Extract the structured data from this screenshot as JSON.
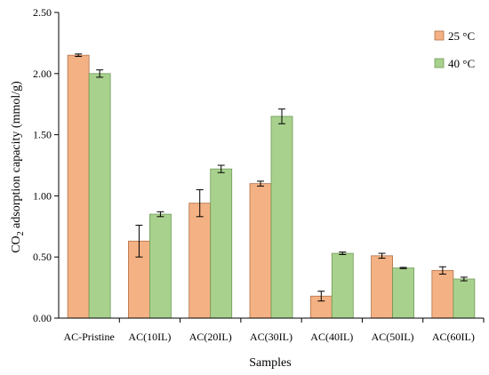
{
  "chart_data": {
    "type": "bar",
    "title": "",
    "xlabel": "Samples",
    "ylabel": {
      "prefix": "CO",
      "subscript": "2",
      "suffix": " adsorption capacity (mmol/g)"
    },
    "ylim": [
      0,
      2.5
    ],
    "yticks": [
      "0.00",
      "0.50",
      "1.00",
      "1.50",
      "2.00",
      "2.50"
    ],
    "grid": false,
    "legend_position": "top-right",
    "categories": [
      "AC-Pristine",
      "AC(10IL)",
      "AC(20IL)",
      "AC(30IL)",
      "AC(40IL)",
      "AC(50IL)",
      "AC(60IL)"
    ],
    "series": [
      {
        "name": "25 °C",
        "color": "#F4B183",
        "values": [
          2.15,
          0.63,
          0.94,
          1.1,
          0.18,
          0.51,
          0.39
        ],
        "errors": [
          0.01,
          0.13,
          0.11,
          0.02,
          0.04,
          0.02,
          0.03
        ]
      },
      {
        "name": "40 °C",
        "color": "#A9D18E",
        "values": [
          2.0,
          0.85,
          1.22,
          1.65,
          0.53,
          0.41,
          0.32
        ],
        "errors": [
          0.03,
          0.02,
          0.03,
          0.06,
          0.01,
          0.005,
          0.015
        ]
      }
    ]
  }
}
